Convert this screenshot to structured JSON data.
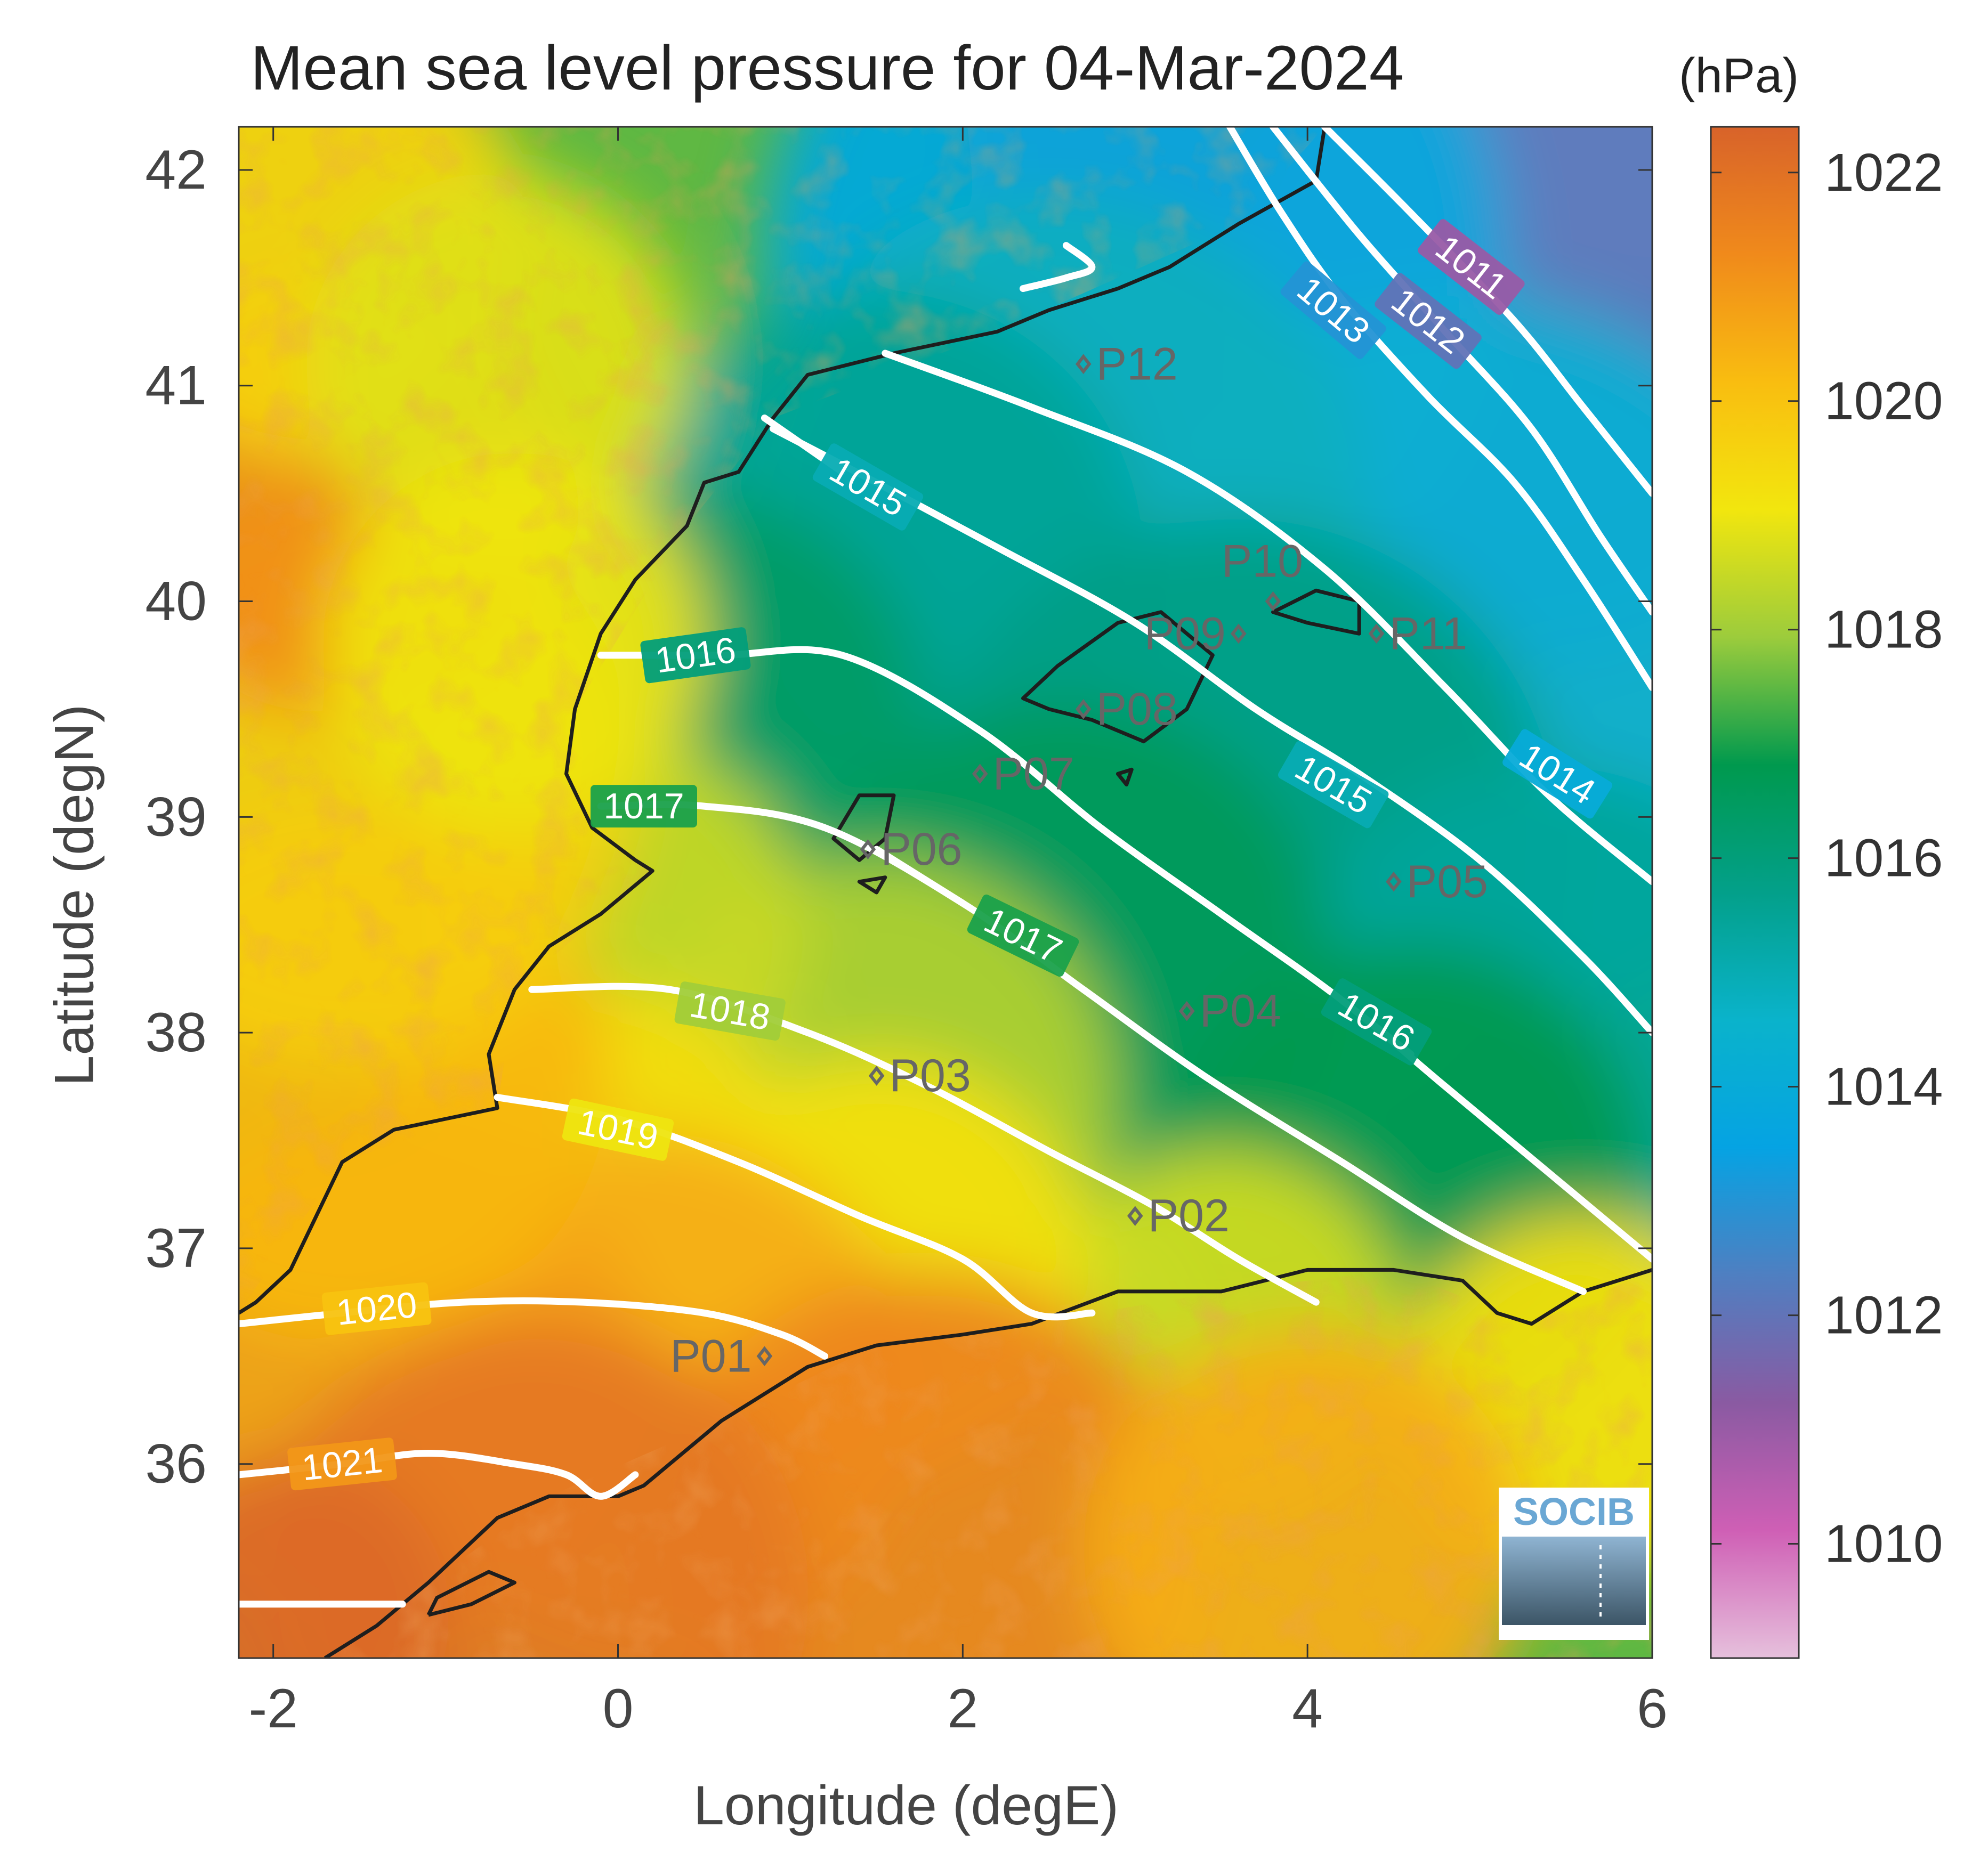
{
  "title": "Mean sea level pressure for 04-Mar-2024",
  "units": "(hPa)",
  "colors": {
    "colormap": [
      "#e6c0dc",
      "#cf5fb5",
      "#8a5aa2",
      "#4f7fc1",
      "#05a3e3",
      "#0ab3cb",
      "#03a08a",
      "#00994e",
      "#9ccc3c",
      "#f2e60e",
      "#f9bd10",
      "#f08a1b",
      "#d8632a"
    ],
    "contour": "#ffffff",
    "coast": "#1e1e1e",
    "station": "#666666",
    "logo_text": "#6aa7d4"
  },
  "chart_data": {
    "type": "heatmap",
    "title": "Mean sea level pressure for 04-Mar-2024",
    "xlabel": "Longitude (degE)",
    "ylabel": "Latitude (degN)",
    "xlim": [
      -2.2,
      6.0
    ],
    "ylim": [
      35.1,
      42.2
    ],
    "xticks": [
      -2,
      0,
      2,
      4,
      6
    ],
    "yticks": [
      36,
      37,
      38,
      39,
      40,
      41,
      42
    ],
    "colorbar": {
      "label": "(hPa)",
      "range": [
        1009,
        1022.4
      ],
      "ticks": [
        1010,
        1012,
        1014,
        1016,
        1018,
        1020,
        1022
      ]
    },
    "contours": [
      {
        "level": 1011,
        "label": "1011",
        "points": [
          [
            4.1,
            42.2
          ],
          [
            4.6,
            41.8
          ],
          [
            5.2,
            41.3
          ],
          [
            5.6,
            40.9
          ],
          [
            6.0,
            40.5
          ]
        ],
        "label_at": [
          4.95,
          41.55
        ],
        "label_angle": 38
      },
      {
        "level": 1012,
        "label": "1012",
        "points": [
          [
            3.8,
            42.2
          ],
          [
            4.3,
            41.7
          ],
          [
            4.8,
            41.25
          ],
          [
            5.3,
            40.8
          ],
          [
            5.7,
            40.3
          ],
          [
            6.0,
            39.95
          ]
        ],
        "label_at": [
          4.7,
          41.3
        ],
        "label_angle": 38
      },
      {
        "level": 1013,
        "label": "1013",
        "points": [
          [
            3.55,
            42.2
          ],
          [
            3.85,
            41.8
          ],
          [
            4.2,
            41.4
          ],
          [
            4.7,
            40.95
          ],
          [
            5.2,
            40.55
          ],
          [
            5.6,
            40.1
          ],
          [
            6.0,
            39.6
          ]
        ],
        "label_at": [
          4.15,
          41.35
        ],
        "label_angle": 40
      },
      {
        "level": 1014,
        "label": "1014",
        "points": [
          [
            1.55,
            41.15
          ],
          [
            2.4,
            40.9
          ],
          [
            3.3,
            40.6
          ],
          [
            4.1,
            40.15
          ],
          [
            4.8,
            39.6
          ],
          [
            5.4,
            39.1
          ],
          [
            6.0,
            38.7
          ]
        ],
        "label_at": [
          5.45,
          39.2
        ],
        "label_angle": 32
      },
      {
        "level": 1015,
        "label": "1015",
        "points": [
          [
            0.9,
            40.8
          ],
          [
            1.5,
            40.55
          ],
          [
            2.2,
            40.25
          ],
          [
            3.0,
            39.9
          ],
          [
            3.7,
            39.5
          ],
          [
            4.3,
            39.2
          ],
          [
            5.0,
            38.8
          ],
          [
            5.6,
            38.35
          ],
          [
            6.0,
            38.0
          ]
        ],
        "label_at": [
          4.15,
          39.15
        ],
        "label_angle": 30
      },
      {
        "level": 1015,
        "label": "1015",
        "points": [
          [
            0.85,
            40.85
          ],
          [
            1.3,
            40.6
          ]
        ],
        "label_at": [
          1.45,
          40.53
        ],
        "label_angle": 30
      },
      {
        "level": 1016,
        "label": "1016",
        "points": [
          [
            -0.1,
            39.75
          ],
          [
            0.6,
            39.75
          ],
          [
            1.3,
            39.75
          ],
          [
            2.1,
            39.4
          ],
          [
            2.8,
            38.95
          ],
          [
            3.5,
            38.55
          ],
          [
            4.2,
            38.15
          ],
          [
            4.8,
            37.75
          ],
          [
            5.4,
            37.35
          ],
          [
            6.0,
            36.95
          ]
        ],
        "label_at": [
          0.45,
          39.75
        ],
        "label_angle": -8
      },
      {
        "level": 1016,
        "label": "1016",
        "points": [
          [
            4.2,
            38.15
          ],
          [
            4.6,
            37.9
          ]
        ],
        "label_at": [
          4.4,
          38.05
        ],
        "label_angle": 30
      },
      {
        "level": 1017,
        "label": "1017",
        "points": [
          [
            -0.1,
            39.05
          ],
          [
            0.5,
            39.05
          ],
          [
            1.2,
            38.95
          ],
          [
            2.0,
            38.6
          ],
          [
            2.7,
            38.2
          ],
          [
            3.4,
            37.8
          ],
          [
            4.2,
            37.4
          ],
          [
            4.9,
            37.05
          ],
          [
            5.6,
            36.8
          ]
        ],
        "label_at": [
          0.15,
          39.05
        ],
        "label_angle": 0
      },
      {
        "level": 1017,
        "label": "1017",
        "points": [
          [
            1.5,
            38.85
          ],
          [
            2.0,
            38.6
          ]
        ],
        "label_at": [
          2.35,
          38.45
        ],
        "label_angle": 26
      },
      {
        "level": 1018,
        "label": "1018",
        "points": [
          [
            -0.5,
            38.2
          ],
          [
            0.3,
            38.2
          ],
          [
            1.1,
            38.0
          ],
          [
            1.8,
            37.75
          ],
          [
            2.5,
            37.45
          ],
          [
            3.1,
            37.2
          ],
          [
            3.6,
            36.95
          ],
          [
            4.05,
            36.75
          ]
        ],
        "label_at": [
          0.65,
          38.1
        ],
        "label_angle": 10
      },
      {
        "level": 1019,
        "label": "1019",
        "points": [
          [
            -0.7,
            37.7
          ],
          [
            0.0,
            37.6
          ],
          [
            0.7,
            37.4
          ],
          [
            1.4,
            37.15
          ],
          [
            2.0,
            36.95
          ],
          [
            2.4,
            36.7
          ],
          [
            2.75,
            36.7
          ]
        ],
        "label_at": [
          0.0,
          37.55
        ],
        "label_angle": 12
      },
      {
        "level": 1020,
        "label": "1020",
        "points": [
          [
            -2.2,
            36.65
          ],
          [
            -1.6,
            36.7
          ],
          [
            -0.9,
            36.75
          ],
          [
            -0.2,
            36.75
          ],
          [
            0.5,
            36.7
          ],
          [
            0.95,
            36.6
          ],
          [
            1.2,
            36.5
          ]
        ],
        "label_at": [
          -1.4,
          36.72
        ],
        "label_angle": -6
      },
      {
        "level": 1021,
        "label": "1021",
        "points": [
          [
            -2.2,
            35.95
          ],
          [
            -1.6,
            36.0
          ],
          [
            -1.1,
            36.05
          ],
          [
            -0.6,
            36.0
          ],
          [
            -0.3,
            35.95
          ],
          [
            -0.1,
            35.85
          ],
          [
            0.1,
            35.95
          ]
        ],
        "label_at": [
          -1.6,
          36.0
        ],
        "label_angle": -6
      },
      {
        "level": 1022,
        "label": "",
        "points": [
          [
            -2.2,
            35.35
          ],
          [
            -1.7,
            35.35
          ],
          [
            -1.25,
            35.35
          ]
        ],
        "label_at": null,
        "label_angle": 0
      },
      {
        "level": 1013,
        "label": "",
        "points": [
          [
            2.35,
            41.45
          ],
          [
            2.6,
            41.5
          ],
          [
            2.75,
            41.55
          ],
          [
            2.6,
            41.65
          ]
        ],
        "label_at": null,
        "label_angle": 0
      }
    ],
    "stations": [
      {
        "name": "P01",
        "lon": 0.85,
        "lat": 36.5,
        "label_side": "left"
      },
      {
        "name": "P02",
        "lon": 3.0,
        "lat": 37.15,
        "label_side": "right"
      },
      {
        "name": "P03",
        "lon": 1.5,
        "lat": 37.8,
        "label_side": "right"
      },
      {
        "name": "P04",
        "lon": 3.3,
        "lat": 38.1,
        "label_side": "right"
      },
      {
        "name": "P05",
        "lon": 4.5,
        "lat": 38.7,
        "label_side": "right"
      },
      {
        "name": "P06",
        "lon": 1.45,
        "lat": 38.85,
        "label_side": "right"
      },
      {
        "name": "P07",
        "lon": 2.1,
        "lat": 39.2,
        "label_side": "right"
      },
      {
        "name": "P08",
        "lon": 2.7,
        "lat": 39.5,
        "label_side": "right"
      },
      {
        "name": "P09",
        "lon": 3.6,
        "lat": 39.85,
        "label_side": "left"
      },
      {
        "name": "P10",
        "lon": 3.8,
        "lat": 40.0,
        "label_side": "above"
      },
      {
        "name": "P11",
        "lon": 4.4,
        "lat": 39.85,
        "label_side": "right"
      },
      {
        "name": "P12",
        "lon": 2.7,
        "lat": 41.1,
        "label_side": "right"
      }
    ],
    "logo": "SOCIB"
  }
}
